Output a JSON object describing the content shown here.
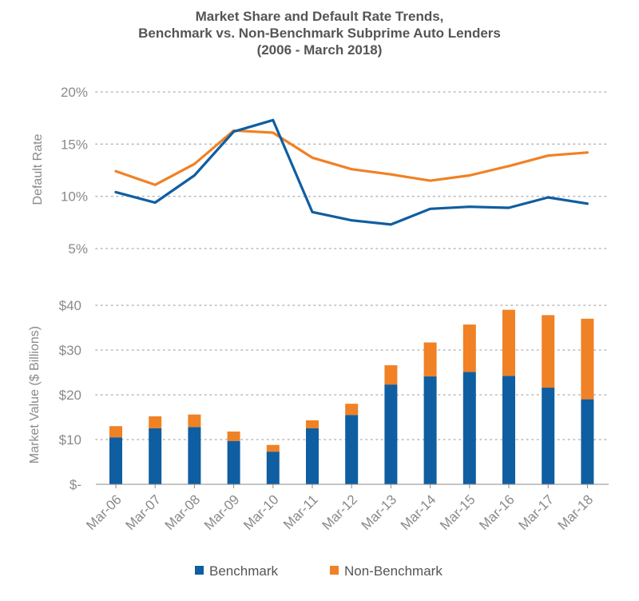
{
  "chart_data": [
    {
      "type": "line",
      "title_lines": [
        "Market Share and Default Rate Trends,",
        "Benchmark vs. Non-Benchmark Subprime Auto Lenders",
        "(2006 - March 2018)"
      ],
      "ylabel": "Default Rate",
      "yticks": [
        "20%",
        "15%",
        "10%",
        "5%"
      ],
      "ylim": [
        5,
        20
      ],
      "grid": true,
      "x": [
        "Mar-06",
        "Mar-07",
        "Mar-08",
        "Mar-09",
        "Mar-10",
        "Mar-11",
        "Mar-12",
        "Mar-13",
        "Mar-14",
        "Mar-15",
        "Mar-16",
        "Mar-17",
        "Mar-18"
      ],
      "series": [
        {
          "name": "Benchmark",
          "color": "#0f5ea1",
          "values": [
            10.4,
            9.4,
            12.0,
            16.2,
            17.3,
            8.5,
            7.7,
            7.3,
            8.8,
            9.0,
            8.9,
            9.9,
            9.3
          ]
        },
        {
          "name": "Non-Benchmark",
          "color": "#f08125",
          "values": [
            12.4,
            11.1,
            13.1,
            16.3,
            16.1,
            13.7,
            12.6,
            12.1,
            11.5,
            12.0,
            12.9,
            13.9,
            14.2
          ]
        }
      ]
    },
    {
      "type": "bar",
      "stacked": true,
      "ylabel": "Market Value ($ Billions)",
      "yticks": [
        "$40",
        "$30",
        "$20",
        "$10",
        "$-"
      ],
      "ylim": [
        0,
        40
      ],
      "grid": true,
      "categories": [
        "Mar-06",
        "Mar-07",
        "Mar-08",
        "Mar-09",
        "Mar-10",
        "Mar-11",
        "Mar-12",
        "Mar-13",
        "Mar-14",
        "Mar-15",
        "Mar-16",
        "Mar-17",
        "Mar-18"
      ],
      "series": [
        {
          "name": "Benchmark",
          "color": "#0f5ea1",
          "values": [
            10.5,
            12.5,
            12.8,
            9.7,
            7.3,
            12.5,
            15.5,
            22.3,
            24.1,
            25.1,
            24.2,
            21.6,
            19.0
          ]
        },
        {
          "name": "Non-Benchmark",
          "color": "#f08125",
          "values": [
            2.5,
            2.7,
            2.8,
            2.1,
            1.5,
            1.8,
            2.5,
            4.3,
            7.6,
            10.6,
            14.8,
            16.2,
            18.0
          ]
        }
      ],
      "legend": "bottom"
    }
  ]
}
